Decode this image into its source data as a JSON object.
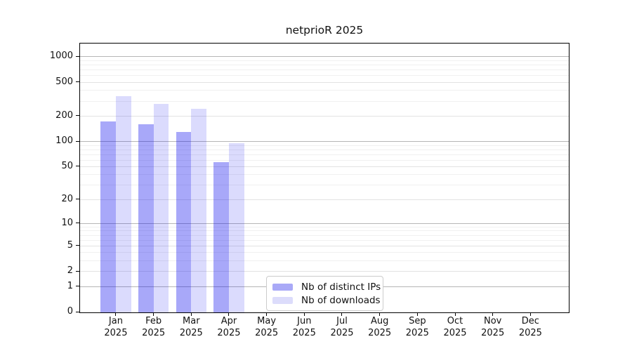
{
  "title": "netprioR 2025",
  "chart_data": {
    "type": "bar",
    "title": "netprioR 2025",
    "scale": "log1p",
    "grid": true,
    "legend_position": "lower center",
    "ylim": [
      0,
      1415
    ],
    "yticks": [
      0,
      1,
      2,
      5,
      10,
      20,
      50,
      100,
      200,
      500,
      1000
    ],
    "ytick_tiers": {
      "major": [
        1,
        10,
        100,
        1000
      ],
      "mid": [
        2,
        5,
        20,
        50,
        200,
        500
      ],
      "minor": [
        3,
        4,
        6,
        7,
        8,
        9,
        30,
        40,
        60,
        70,
        80,
        90,
        300,
        400,
        600,
        700,
        800,
        900
      ]
    },
    "categories": [
      {
        "month": "Jan",
        "year": "2025"
      },
      {
        "month": "Feb",
        "year": "2025"
      },
      {
        "month": "Mar",
        "year": "2025"
      },
      {
        "month": "Apr",
        "year": "2025"
      },
      {
        "month": "May",
        "year": "2025"
      },
      {
        "month": "Jun",
        "year": "2025"
      },
      {
        "month": "Jul",
        "year": "2025"
      },
      {
        "month": "Aug",
        "year": "2025"
      },
      {
        "month": "Sep",
        "year": "2025"
      },
      {
        "month": "Oct",
        "year": "2025"
      },
      {
        "month": "Nov",
        "year": "2025"
      },
      {
        "month": "Dec",
        "year": "2025"
      }
    ],
    "series": [
      {
        "name": "Nb of distinct IPs",
        "fill": "rgba(0,0,238,0.34)",
        "swatch_color": "#a9a9f7",
        "values": [
          174,
          163,
          132,
          57,
          null,
          null,
          null,
          null,
          null,
          null,
          null,
          null
        ]
      },
      {
        "name": "Nb of downloads",
        "fill": "rgba(0,0,238,0.14)",
        "swatch_color": "#dcdcfb",
        "values": [
          344,
          279,
          248,
          97,
          null,
          null,
          null,
          null,
          null,
          null,
          null,
          null
        ]
      }
    ]
  }
}
